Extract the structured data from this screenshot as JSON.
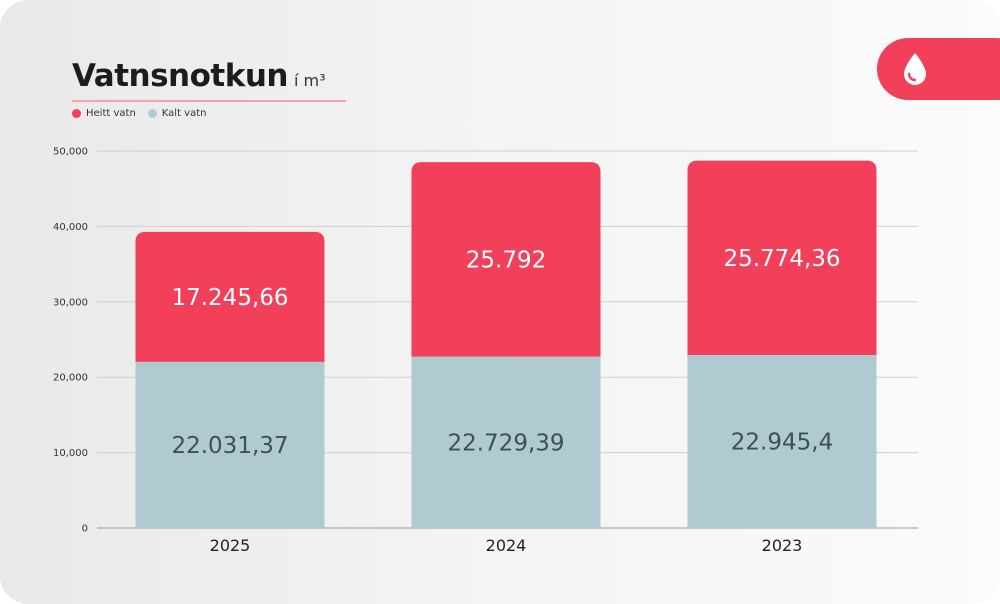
{
  "header": {
    "title": "Vatnsnotkun",
    "unit": "í m³"
  },
  "badge": {
    "icon": "water-drop-icon"
  },
  "colors": {
    "hot": "#f2405a",
    "cold": "#afcbd1",
    "badge": "#f2405a"
  },
  "chart_data": {
    "type": "bar",
    "stacked": true,
    "categories": [
      "2025",
      "2024",
      "2023"
    ],
    "series": [
      {
        "name": "Kalt vatn",
        "values": [
          22031.37,
          22729.39,
          22945.4
        ],
        "labels": [
          "22.031,37",
          "22.729,39",
          "22.945,4"
        ]
      },
      {
        "name": "Heitt vatn",
        "values": [
          17245.66,
          25792,
          25774.36
        ],
        "labels": [
          "17.245,66",
          "25.792",
          "25.774,36"
        ]
      }
    ],
    "yticks": [
      "0",
      "10,000",
      "20,000",
      "30,000",
      "40,000",
      "50,000"
    ],
    "ylim": [
      0,
      50000
    ],
    "grid": true,
    "legend": "top-left"
  }
}
